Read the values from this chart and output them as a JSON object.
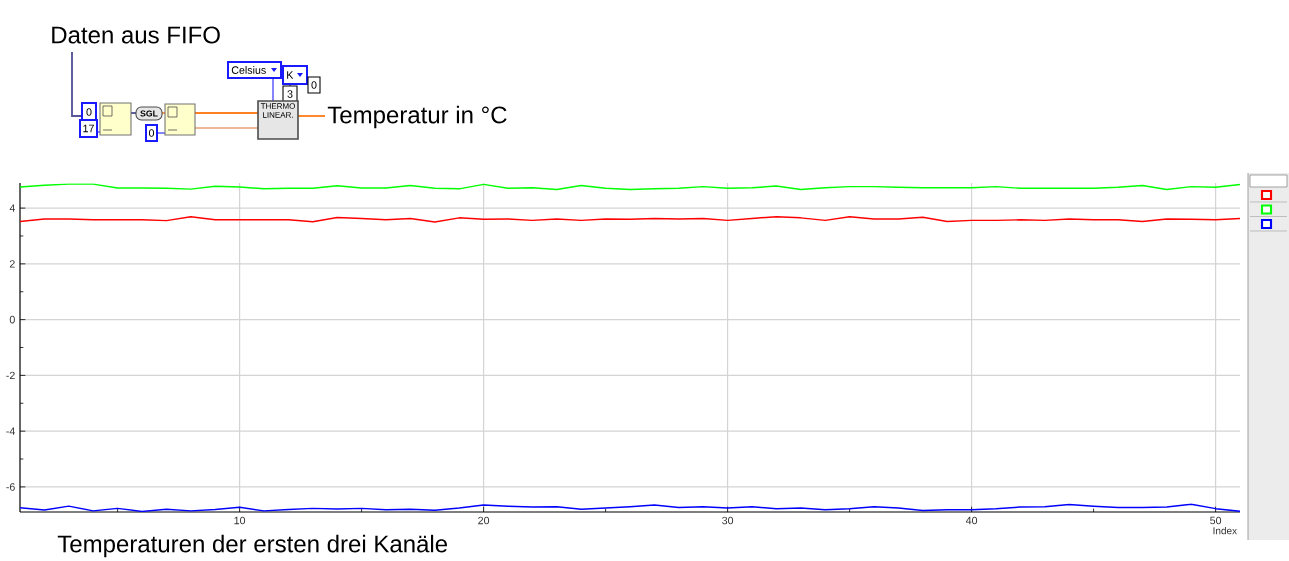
{
  "chart_data": {
    "type": "line",
    "xlabel": "Index",
    "x": [
      1,
      2,
      3,
      4,
      5,
      6,
      7,
      8,
      9,
      10,
      11,
      12,
      13,
      14,
      15,
      16,
      17,
      18,
      19,
      20,
      21,
      22,
      23,
      24,
      25,
      26,
      27,
      28,
      29,
      30,
      31,
      32,
      33,
      34,
      35,
      36,
      37,
      38,
      39,
      40,
      41,
      42,
      43,
      44,
      45,
      46,
      47,
      48,
      49,
      50,
      51
    ],
    "series": [
      {
        "color": "#ff0000",
        "values": [
          3.52,
          3.61,
          3.61,
          3.58,
          3.58,
          3.58,
          3.55,
          3.69,
          3.58,
          3.58,
          3.58,
          3.58,
          3.51,
          3.66,
          3.63,
          3.58,
          3.63,
          3.5,
          3.65,
          3.6,
          3.61,
          3.56,
          3.61,
          3.56,
          3.61,
          3.6,
          3.63,
          3.61,
          3.63,
          3.56,
          3.63,
          3.69,
          3.65,
          3.56,
          3.69,
          3.61,
          3.61,
          3.67,
          3.52,
          3.56,
          3.56,
          3.58,
          3.56,
          3.61,
          3.58,
          3.58,
          3.52,
          3.61,
          3.6,
          3.58,
          3.63
        ]
      },
      {
        "color": "#00ff00",
        "values": [
          4.76,
          4.82,
          4.86,
          4.86,
          4.72,
          4.72,
          4.71,
          4.68,
          4.78,
          4.76,
          4.69,
          4.71,
          4.71,
          4.8,
          4.72,
          4.72,
          4.81,
          4.71,
          4.69,
          4.85,
          4.71,
          4.73,
          4.67,
          4.81,
          4.71,
          4.67,
          4.69,
          4.71,
          4.77,
          4.71,
          4.73,
          4.79,
          4.67,
          4.73,
          4.77,
          4.77,
          4.75,
          4.73,
          4.73,
          4.73,
          4.77,
          4.71,
          4.71,
          4.71,
          4.71,
          4.75,
          4.81,
          4.67,
          4.77,
          4.75,
          4.85
        ]
      },
      {
        "color": "#0000ff",
        "values": [
          -6.75,
          -6.83,
          -6.69,
          -6.86,
          -6.77,
          -6.88,
          -6.8,
          -6.86,
          -6.81,
          -6.73,
          -6.86,
          -6.81,
          -6.77,
          -6.79,
          -6.77,
          -6.82,
          -6.8,
          -6.84,
          -6.76,
          -6.65,
          -6.69,
          -6.72,
          -6.71,
          -6.8,
          -6.76,
          -6.71,
          -6.65,
          -6.74,
          -6.71,
          -6.76,
          -6.71,
          -6.78,
          -6.76,
          -6.82,
          -6.78,
          -6.71,
          -6.76,
          -6.85,
          -6.82,
          -6.82,
          -6.78,
          -6.72,
          -6.71,
          -6.63,
          -6.69,
          -6.74,
          -6.74,
          -6.72,
          -6.62,
          -6.78,
          -6.87
        ]
      }
    ],
    "xlim": [
      1,
      51
    ],
    "xticks": [
      {
        "value": 5,
        "label": null
      },
      10,
      {
        "value": 15,
        "label": null
      },
      20,
      {
        "value": 25,
        "label": null
      },
      30,
      {
        "value": 35,
        "label": null
      },
      40,
      {
        "value": 45,
        "label": null
      },
      50
    ],
    "ylim": [
      -6.9,
      4.9
    ],
    "yticks": [
      {
        "value": -5,
        "label": null
      },
      -6,
      -4,
      {
        "value": -3,
        "label": null
      },
      -2,
      {
        "value": -1,
        "label": null
      },
      0,
      {
        "value": 1,
        "label": null
      },
      2,
      {
        "value": 3,
        "label": null
      },
      4
    ],
    "grid": true,
    "marker": "none",
    "line_style": "solid",
    "annotations": [
      "Daten aus FIFO",
      "Temperatur in °C",
      "Celsius",
      "K",
      "0",
      "3",
      "0",
      "17",
      "SGL",
      "0",
      "THERMO LINEAR.",
      "Temperaturen der ersten drei Kanäle"
    ]
  }
}
